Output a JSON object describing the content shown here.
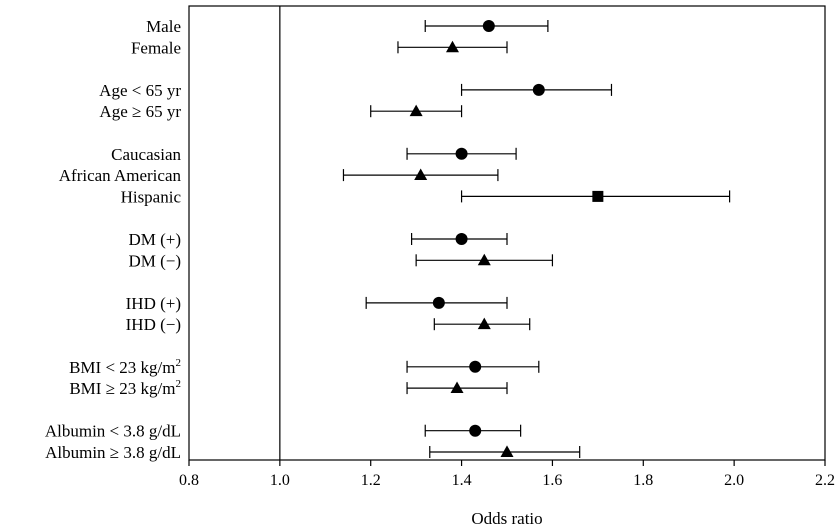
{
  "chart_data": {
    "type": "forest",
    "xlabel": "Odds ratio",
    "xlim": [
      0.8,
      2.2
    ],
    "xticks": [
      "0.8",
      "1.0",
      "1.2",
      "1.4",
      "1.6",
      "1.8",
      "2.0",
      "2.2"
    ],
    "reference_line": 1.0,
    "marker_legend": {
      "circle": "first subgroup",
      "triangle": "second subgroup",
      "square": "third subgroup"
    },
    "groups": [
      {
        "rows": [
          {
            "label": "Male",
            "or": 1.46,
            "ci": [
              1.32,
              1.59
            ],
            "marker": "circle"
          },
          {
            "label": "Female",
            "or": 1.38,
            "ci": [
              1.26,
              1.5
            ],
            "marker": "triangle"
          }
        ]
      },
      {
        "rows": [
          {
            "label": "Age < 65 yr",
            "or": 1.57,
            "ci": [
              1.4,
              1.73
            ],
            "marker": "circle"
          },
          {
            "label": "Age ≥ 65 yr",
            "or": 1.3,
            "ci": [
              1.2,
              1.4
            ],
            "marker": "triangle"
          }
        ]
      },
      {
        "rows": [
          {
            "label": "Caucasian",
            "or": 1.4,
            "ci": [
              1.28,
              1.52
            ],
            "marker": "circle"
          },
          {
            "label": "African American",
            "or": 1.31,
            "ci": [
              1.14,
              1.48
            ],
            "marker": "triangle"
          },
          {
            "label": "Hispanic",
            "or": 1.7,
            "ci": [
              1.4,
              1.99
            ],
            "marker": "square"
          }
        ]
      },
      {
        "rows": [
          {
            "label": "DM (+)",
            "or": 1.4,
            "ci": [
              1.29,
              1.5
            ],
            "marker": "circle"
          },
          {
            "label": "DM (−)",
            "or": 1.45,
            "ci": [
              1.3,
              1.6
            ],
            "marker": "triangle"
          }
        ]
      },
      {
        "rows": [
          {
            "label": "IHD (+)",
            "or": 1.35,
            "ci": [
              1.19,
              1.5
            ],
            "marker": "circle"
          },
          {
            "label": "IHD (−)",
            "or": 1.45,
            "ci": [
              1.34,
              1.55
            ],
            "marker": "triangle"
          }
        ]
      },
      {
        "rows": [
          {
            "label": "BMI < 23 kg/m",
            "label_sup": "2",
            "or": 1.43,
            "ci": [
              1.28,
              1.57
            ],
            "marker": "circle"
          },
          {
            "label": "BMI ≥ 23 kg/m",
            "label_sup": "2",
            "or": 1.39,
            "ci": [
              1.28,
              1.5
            ],
            "marker": "triangle"
          }
        ]
      },
      {
        "rows": [
          {
            "label": "Albumin < 3.8 g/dL",
            "or": 1.43,
            "ci": [
              1.32,
              1.53
            ],
            "marker": "circle"
          },
          {
            "label": "Albumin ≥ 3.8 g/dL",
            "or": 1.5,
            "ci": [
              1.33,
              1.66
            ],
            "marker": "triangle"
          }
        ]
      }
    ],
    "grid": false,
    "legend": "none",
    "colors": {
      "ink": "#000000",
      "background": "#ffffff"
    }
  }
}
